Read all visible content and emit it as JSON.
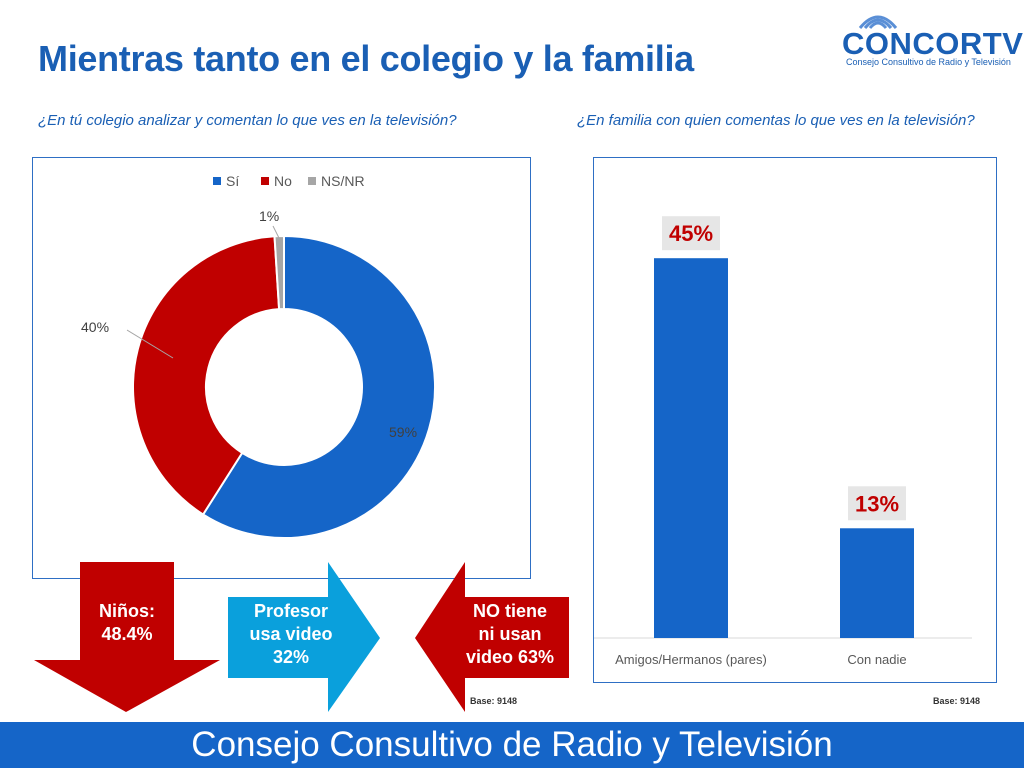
{
  "title": "Mientras tanto en el colegio y la familia",
  "logo": {
    "brand": "CONCORTV",
    "subtitle": "Consejo Consultivo de Radio y Televisión"
  },
  "left_question": "¿En tú colegio  analizar y comentan lo que ves en la televisión?",
  "right_question": "¿En familia con quien comentas lo que ves en la televisión?",
  "arrows": {
    "ninos": [
      "Niños:",
      "48.4%"
    ],
    "profesor": [
      "Profesor",
      "usa video",
      "32%"
    ],
    "no_tiene": [
      "NO tiene",
      "ni usan",
      "video 63%"
    ]
  },
  "base_left": "Base: 9148",
  "base_right": "Base: 9148",
  "footer": "Consejo Consultivo de Radio y Televisión",
  "colors": {
    "blue": "#1565c8",
    "red": "#c00000",
    "gray": "#a6a6a6",
    "title_blue": "#1a5fb4"
  },
  "chart_data": [
    {
      "type": "pie",
      "donut": true,
      "legend_position": "top",
      "slices": [
        {
          "label": "Sí",
          "value": 59,
          "display": "59%",
          "color": "#1565c8"
        },
        {
          "label": "No",
          "value": 40,
          "display": "40%",
          "color": "#c00000"
        },
        {
          "label": "NS/NR",
          "value": 1,
          "display": "1%",
          "color": "#a6a6a6"
        }
      ]
    },
    {
      "type": "bar",
      "categories": [
        "Amigos/Hermanos (pares)",
        "Con nadie"
      ],
      "values": [
        45,
        13
      ],
      "labels": [
        "45%",
        "13%"
      ],
      "ylim": [
        0,
        50
      ],
      "color": "#1565c8",
      "label_color": "#c00000",
      "grid": false
    }
  ]
}
